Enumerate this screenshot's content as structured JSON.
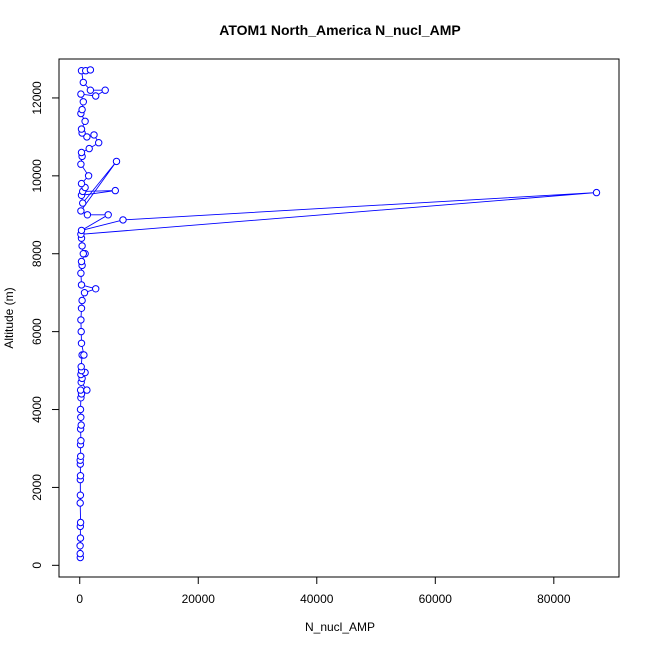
{
  "chart_data": {
    "type": "line",
    "title": "ATOM1 North_America N_nucl_AMP",
    "xlabel": "N_nucl_AMP",
    "ylabel": "Altitude (m)",
    "xlim": [
      -3500,
      91000
    ],
    "ylim": [
      -300,
      13000
    ],
    "x_ticks": [
      0,
      20000,
      40000,
      60000,
      80000
    ],
    "y_ticks": [
      0,
      2000,
      4000,
      6000,
      8000,
      10000,
      12000
    ],
    "grid": false,
    "legend": "none",
    "series": [
      {
        "color": "#0000ff",
        "marker": "open-circle",
        "points": [
          [
            100,
            200
          ],
          [
            80,
            300
          ],
          [
            60,
            500
          ],
          [
            120,
            700
          ],
          [
            90,
            1000
          ],
          [
            150,
            1100
          ],
          [
            80,
            1600
          ],
          [
            110,
            1800
          ],
          [
            90,
            2200
          ],
          [
            130,
            2300
          ],
          [
            100,
            2600
          ],
          [
            80,
            2700
          ],
          [
            160,
            2800
          ],
          [
            120,
            3100
          ],
          [
            200,
            3200
          ],
          [
            150,
            3500
          ],
          [
            250,
            3600
          ],
          [
            180,
            3800
          ],
          [
            120,
            4000
          ],
          [
            200,
            4300
          ],
          [
            300,
            4400
          ],
          [
            150,
            4500
          ],
          [
            1200,
            4500
          ],
          [
            250,
            4700
          ],
          [
            400,
            4800
          ],
          [
            200,
            4900
          ],
          [
            900,
            4950
          ],
          [
            300,
            5000
          ],
          [
            250,
            5100
          ],
          [
            400,
            5400
          ],
          [
            700,
            5400
          ],
          [
            300,
            5700
          ],
          [
            250,
            6000
          ],
          [
            200,
            6300
          ],
          [
            300,
            6600
          ],
          [
            400,
            6800
          ],
          [
            800,
            7000
          ],
          [
            2700,
            7100
          ],
          [
            300,
            7200
          ],
          [
            200,
            7500
          ],
          [
            400,
            7700
          ],
          [
            300,
            7800
          ],
          [
            900,
            8000
          ],
          [
            600,
            8000
          ],
          [
            400,
            8200
          ],
          [
            300,
            8400
          ],
          [
            200,
            8500
          ],
          [
            87200,
            9570
          ],
          [
            7300,
            8870
          ],
          [
            300,
            8600
          ],
          [
            4800,
            9000
          ],
          [
            1300,
            9000
          ],
          [
            200,
            9100
          ],
          [
            6200,
            10370
          ],
          [
            500,
            9300
          ],
          [
            300,
            9500
          ],
          [
            6000,
            9620
          ],
          [
            500,
            9600
          ],
          [
            900,
            9700
          ],
          [
            300,
            9800
          ],
          [
            1500,
            10000
          ],
          [
            200,
            10300
          ],
          [
            400,
            10500
          ],
          [
            300,
            10600
          ],
          [
            1600,
            10700
          ],
          [
            3200,
            10850
          ],
          [
            2400,
            11050
          ],
          [
            1200,
            11000
          ],
          [
            400,
            11100
          ],
          [
            300,
            11200
          ],
          [
            900,
            11400
          ],
          [
            200,
            11600
          ],
          [
            400,
            11700
          ],
          [
            600,
            11900
          ],
          [
            200,
            12100
          ],
          [
            2700,
            12050
          ],
          [
            4300,
            12200
          ],
          [
            1800,
            12200
          ],
          [
            600,
            12400
          ],
          [
            300,
            12700
          ],
          [
            1000,
            12700
          ],
          [
            1800,
            12720
          ]
        ]
      }
    ]
  }
}
